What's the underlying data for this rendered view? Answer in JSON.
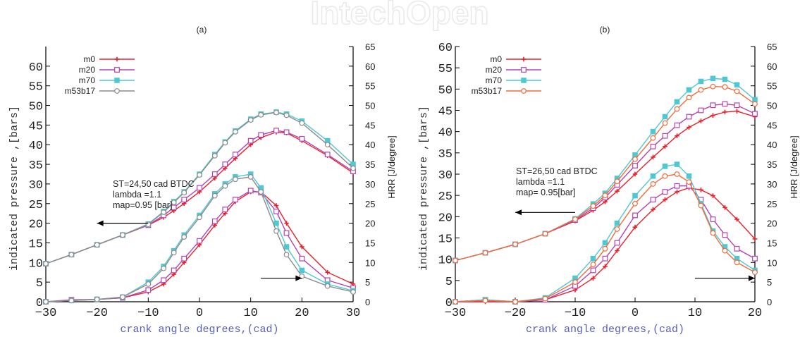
{
  "watermark": {
    "text": "IntechOpen"
  },
  "colors": {
    "m0": "#e8212b",
    "m20": "#b542b3",
    "m70": "#4fc8d2",
    "m53b17": "#8c8c8c",
    "m53b17_b": "#f26b3a",
    "axis_label": "#5561b8"
  },
  "chart_data": [
    {
      "id": "a",
      "type": "line",
      "title": "(a)",
      "xlabel": "crank angle degrees,(cad)",
      "ylabel": "indicated pressure ,[bars]",
      "y2label": "HRR [J/degree]",
      "xlim": [
        -30,
        30
      ],
      "ylim": [
        0,
        65
      ],
      "y2lim": [
        0,
        65
      ],
      "xticks": [
        -30,
        -20,
        -10,
        0,
        10,
        20,
        30
      ],
      "yticks": [
        0,
        5,
        10,
        15,
        20,
        25,
        30,
        35,
        40,
        45,
        50,
        55,
        60
      ],
      "y2ticks": [
        0,
        5,
        10,
        15,
        20,
        25,
        30,
        35,
        40,
        45,
        50,
        55,
        60,
        65
      ],
      "legend": "top-left",
      "annotation": [
        "ST=24,50 cad BTDC",
        "lambda =1.1",
        "map=0.95 [bar]"
      ],
      "x": [
        -30,
        -25,
        -20,
        -15,
        -10,
        -7,
        -5,
        -3,
        0,
        3,
        5,
        7,
        10,
        12,
        15,
        17,
        20,
        25,
        30
      ],
      "series": [
        {
          "name": "m0",
          "marker": "plus",
          "pressure": [
            9.7,
            12,
            14.5,
            17,
            19.5,
            21.5,
            23.2,
            25,
            28,
            31.5,
            34,
            36.5,
            40,
            41.8,
            43.2,
            43,
            41,
            37.2,
            32.8
          ],
          "hrr": [
            0,
            0.3,
            0.6,
            1,
            2.5,
            4.5,
            7,
            10,
            14.5,
            19.5,
            22.5,
            25.5,
            28,
            28,
            24.5,
            20,
            14,
            7.5,
            4.5
          ]
        },
        {
          "name": "m20",
          "marker": "square-open",
          "pressure": [
            9.7,
            12,
            14.5,
            17,
            19.5,
            22,
            24,
            26,
            29,
            32.5,
            35,
            37.5,
            41,
            42.5,
            43.6,
            43.2,
            41.5,
            37.5,
            33.2
          ],
          "hrr": [
            0,
            0.5,
            0.6,
            1,
            3,
            5.5,
            8,
            11,
            15.5,
            20.5,
            23.5,
            26,
            28.3,
            27.8,
            23,
            17.5,
            11,
            5.5,
            3.5
          ]
        },
        {
          "name": "m70",
          "marker": "square-filled",
          "pressure": [
            9.7,
            12,
            14.5,
            17,
            19.8,
            23,
            25.5,
            28,
            32.5,
            37.5,
            40.7,
            43.5,
            46.5,
            47.8,
            48.3,
            47.8,
            46,
            41,
            35
          ],
          "hrr": [
            0,
            0.3,
            0.6,
            1.2,
            5,
            9,
            13,
            17,
            22,
            27.5,
            30,
            31.8,
            32.5,
            29,
            20,
            14,
            8,
            4.5,
            2.8
          ]
        },
        {
          "name": "m53b17",
          "marker": "circle-open",
          "pressure": [
            9.7,
            12,
            14.5,
            17,
            19.7,
            22.8,
            25.3,
            27.8,
            32.3,
            37.2,
            40.5,
            43.3,
            46.3,
            47.6,
            48.2,
            47.5,
            45.5,
            40,
            34
          ],
          "hrr": [
            0,
            0.3,
            0.6,
            1.2,
            4.5,
            8.5,
            12.5,
            16.5,
            21.5,
            27,
            29.5,
            31.2,
            31.8,
            28,
            18,
            12,
            6.5,
            4,
            2.5
          ]
        }
      ],
      "arrows": [
        {
          "direction": "left",
          "from": [
            -10,
            20
          ],
          "to": [
            -20,
            20
          ]
        },
        {
          "direction": "right",
          "from": [
            12,
            6
          ],
          "to": [
            20,
            6
          ]
        }
      ]
    },
    {
      "id": "b",
      "type": "line",
      "title": "(b)",
      "xlabel": "crank angle degrees,(cad)",
      "ylabel": "indicated pressure ,[bars]",
      "y2label": "HRR [J/degree]",
      "xlim": [
        -30,
        20
      ],
      "ylim": [
        0,
        60
      ],
      "y2lim": [
        0,
        65
      ],
      "xticks": [
        -30,
        -20,
        -10,
        0,
        10,
        20
      ],
      "yticks": [
        0,
        5,
        10,
        15,
        20,
        25,
        30,
        35,
        40,
        45,
        50,
        55,
        60
      ],
      "y2ticks": [
        0,
        5,
        10,
        15,
        20,
        25,
        30,
        35,
        40,
        45,
        50,
        55,
        60,
        65
      ],
      "legend": "top-left",
      "annotation": [
        "ST=26,50 cad BTDC",
        "lambda =1.1",
        "map= 0.95[bar]"
      ],
      "x": [
        -30,
        -25,
        -20,
        -15,
        -10,
        -7,
        -5,
        -3,
        0,
        3,
        5,
        7,
        9,
        11,
        13,
        15,
        17,
        20
      ],
      "series": [
        {
          "name": "m0",
          "marker": "plus",
          "pressure": [
            9.7,
            11.5,
            13.5,
            16,
            19,
            21.5,
            23.5,
            26,
            30,
            34,
            36.5,
            39,
            41,
            42.5,
            43.8,
            44.6,
            44.8,
            43.5
          ],
          "hrr": [
            0,
            0,
            0,
            0.5,
            3,
            6,
            9,
            13,
            19,
            23.5,
            26,
            28,
            29,
            28.5,
            27,
            24,
            21,
            16
          ]
        },
        {
          "name": "m20",
          "marker": "square-open",
          "pressure": [
            9.7,
            11.5,
            13.5,
            16,
            19.2,
            22,
            24.5,
            27.5,
            32,
            36.5,
            39,
            41.5,
            43.5,
            45,
            46.2,
            46.5,
            46.2,
            44.2
          ],
          "hrr": [
            0,
            0.5,
            0,
            0.5,
            4,
            8,
            11,
            15,
            22,
            26,
            28,
            29.5,
            29.5,
            26,
            21,
            17,
            13.5,
            11
          ]
        },
        {
          "name": "m70",
          "marker": "square-filled",
          "pressure": [
            9.7,
            11.5,
            13.5,
            16,
            19.5,
            23,
            25.5,
            29,
            34.5,
            40,
            43.5,
            47,
            49.8,
            51.8,
            52.5,
            52.3,
            51,
            47.5
          ],
          "hrr": [
            0,
            0.5,
            0,
            1,
            6,
            11,
            15,
            20,
            27,
            32,
            34.5,
            35,
            32,
            25,
            18,
            14,
            11,
            8
          ]
        },
        {
          "name": "m53b17",
          "marker": "circle-open",
          "pressure": [
            9.7,
            11.5,
            13.5,
            16,
            19.4,
            22.5,
            25,
            28.3,
            33.5,
            38.5,
            42,
            45.3,
            48,
            49.8,
            50.6,
            50.5,
            49.5,
            46.5
          ],
          "hrr": [
            0,
            0.3,
            0,
            0.8,
            5,
            9.5,
            13.5,
            18.5,
            25,
            30,
            32,
            32.5,
            30.5,
            24.5,
            17.5,
            13,
            10,
            7.5
          ]
        }
      ],
      "arrows": [
        {
          "direction": "left",
          "from": [
            -10,
            21
          ],
          "to": [
            -20,
            21
          ]
        },
        {
          "direction": "right",
          "from": [
            10,
            6
          ],
          "to": [
            20,
            6
          ]
        }
      ]
    }
  ]
}
